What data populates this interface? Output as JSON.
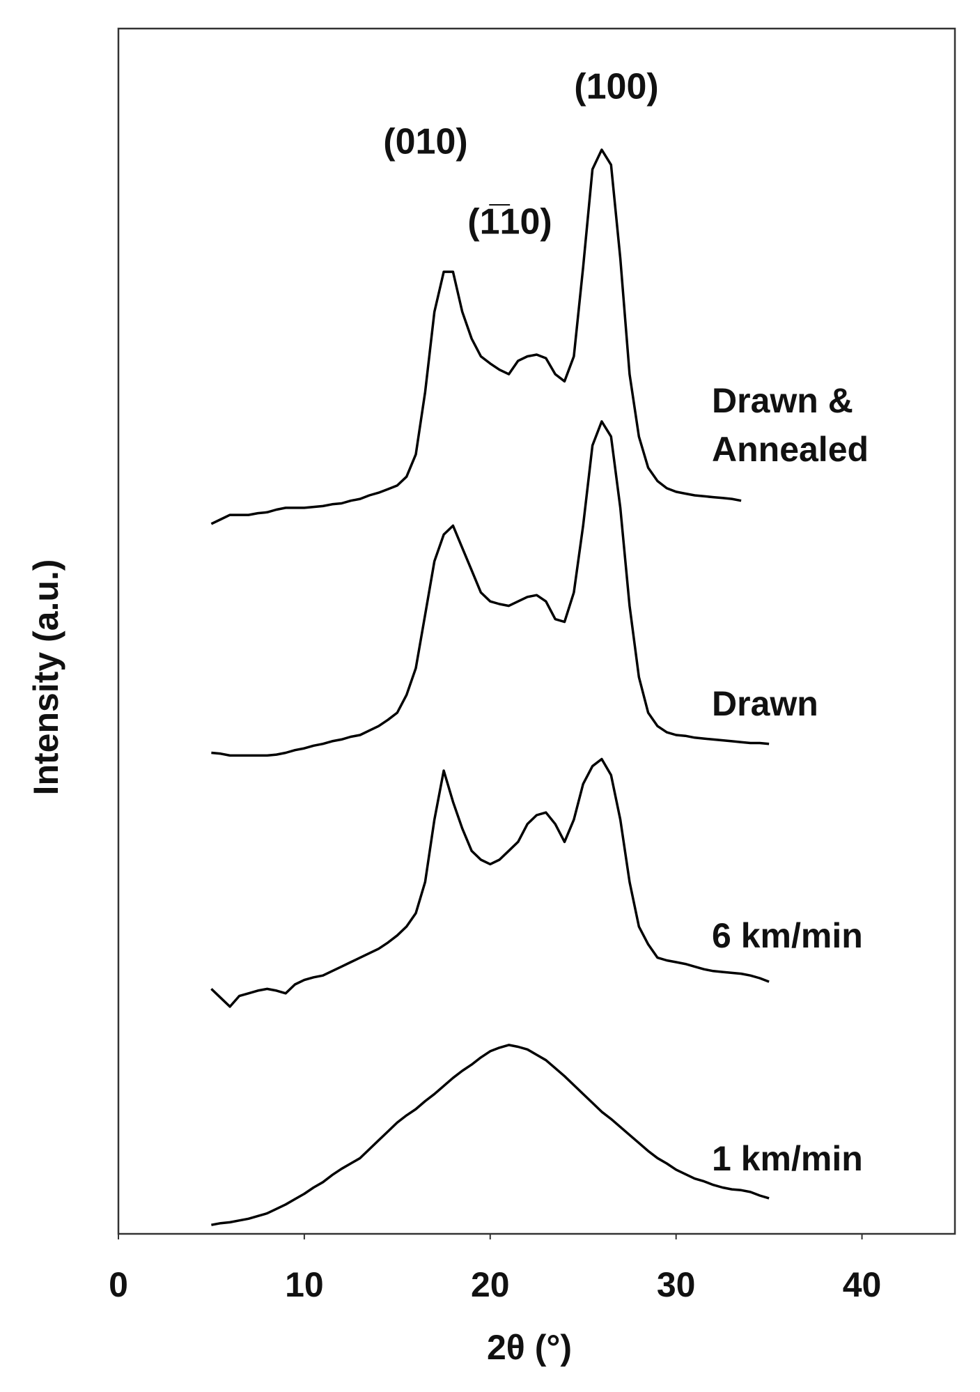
{
  "chart_data": {
    "type": "line",
    "x_label": "2θ (°)",
    "y_label": "Intensity (a.u.)",
    "xlim": [
      0,
      45
    ],
    "xticks": [
      0,
      10,
      20,
      30,
      40
    ],
    "ylim": [
      0,
      135.3
    ],
    "annotations": [
      "(010)",
      "(1̅10)",
      "(100)"
    ],
    "x": [
      5,
      5.5,
      6,
      6.5,
      7,
      7.5,
      8,
      8.5,
      9,
      9.5,
      10,
      10.5,
      11,
      11.5,
      12,
      12.5,
      13,
      13.5,
      14,
      14.5,
      15,
      15.5,
      16,
      16.5,
      17,
      17.5,
      18,
      18.5,
      19,
      19.5,
      20,
      20.5,
      21,
      21.5,
      22,
      22.5,
      23,
      23.5,
      24,
      24.5,
      25,
      25.5,
      26,
      26.5,
      27,
      27.5,
      28,
      28.5,
      29,
      29.5,
      30,
      30.5,
      31,
      31.5,
      32,
      32.5,
      33,
      33.5,
      34,
      34.5,
      35
    ],
    "series": [
      {
        "name": "Drawn & Annealed",
        "color": "#000000",
        "values": [
          79.7,
          80.2,
          80.7,
          80.7,
          80.7,
          80.9,
          81.0,
          81.3,
          81.5,
          81.5,
          81.5,
          81.6,
          81.7,
          81.9,
          82.0,
          82.3,
          82.5,
          82.9,
          83.2,
          83.6,
          84.0,
          85.0,
          87.5,
          94.5,
          103.5,
          108.0,
          108.0,
          103.5,
          100.5,
          98.5,
          97.7,
          97.0,
          96.5,
          98.0,
          98.5,
          98.7,
          98.3,
          96.5,
          95.7,
          98.5,
          108.5,
          119.5,
          121.7,
          120.0,
          109.5,
          96.5,
          89.5,
          86.0,
          84.5,
          83.7,
          83.3,
          83.1,
          82.9,
          82.8,
          82.7,
          82.6,
          82.5,
          82.3,
          null,
          null,
          null
        ]
      },
      {
        "name": "Drawn",
        "color": "#000000",
        "values": [
          54.0,
          53.9,
          53.7,
          53.7,
          53.7,
          53.7,
          53.7,
          53.8,
          54.0,
          54.3,
          54.5,
          54.8,
          55.0,
          55.3,
          55.5,
          55.8,
          56.0,
          56.5,
          57.0,
          57.7,
          58.5,
          60.5,
          63.5,
          69.5,
          75.5,
          78.5,
          79.5,
          77.0,
          74.5,
          72.0,
          71.0,
          70.7,
          70.5,
          71.0,
          71.5,
          71.7,
          71.0,
          69.0,
          68.7,
          72.0,
          79.5,
          88.5,
          91.2,
          89.5,
          81.5,
          70.5,
          62.5,
          58.5,
          57.0,
          56.3,
          56.0,
          55.9,
          55.7,
          55.6,
          55.5,
          55.4,
          55.3,
          55.2,
          55.1,
          55.1,
          55.0
        ]
      },
      {
        "name": "6 km/min",
        "color": "#000000",
        "values": [
          27.5,
          26.5,
          25.5,
          26.7,
          27.0,
          27.3,
          27.5,
          27.3,
          27.0,
          28.0,
          28.5,
          28.8,
          29.0,
          29.5,
          30.0,
          30.5,
          31.0,
          31.5,
          32.0,
          32.7,
          33.5,
          34.5,
          36.0,
          39.5,
          46.5,
          52.0,
          48.5,
          45.5,
          43.0,
          42.0,
          41.5,
          42.0,
          43.0,
          44.0,
          46.0,
          47.0,
          47.3,
          46.0,
          44.0,
          46.5,
          50.5,
          52.5,
          53.3,
          51.5,
          46.5,
          39.5,
          34.5,
          32.5,
          31.0,
          30.7,
          30.5,
          30.3,
          30.0,
          29.7,
          29.5,
          29.4,
          29.3,
          29.2,
          29.0,
          28.7,
          28.3
        ]
      },
      {
        "name": "1 km/min",
        "color": "#000000",
        "values": [
          1.0,
          1.2,
          1.3,
          1.5,
          1.7,
          2.0,
          2.3,
          2.8,
          3.3,
          3.9,
          4.5,
          5.2,
          5.8,
          6.6,
          7.3,
          7.9,
          8.5,
          9.5,
          10.5,
          11.5,
          12.5,
          13.3,
          14.0,
          14.9,
          15.7,
          16.6,
          17.5,
          18.3,
          19.0,
          19.8,
          20.5,
          20.9,
          21.2,
          21.0,
          20.7,
          20.1,
          19.5,
          18.6,
          17.7,
          16.7,
          15.7,
          14.7,
          13.7,
          12.9,
          12.0,
          11.1,
          10.2,
          9.3,
          8.5,
          7.9,
          7.2,
          6.7,
          6.2,
          5.9,
          5.5,
          5.2,
          5.0,
          4.9,
          4.7,
          4.3,
          4.0
        ]
      }
    ]
  }
}
